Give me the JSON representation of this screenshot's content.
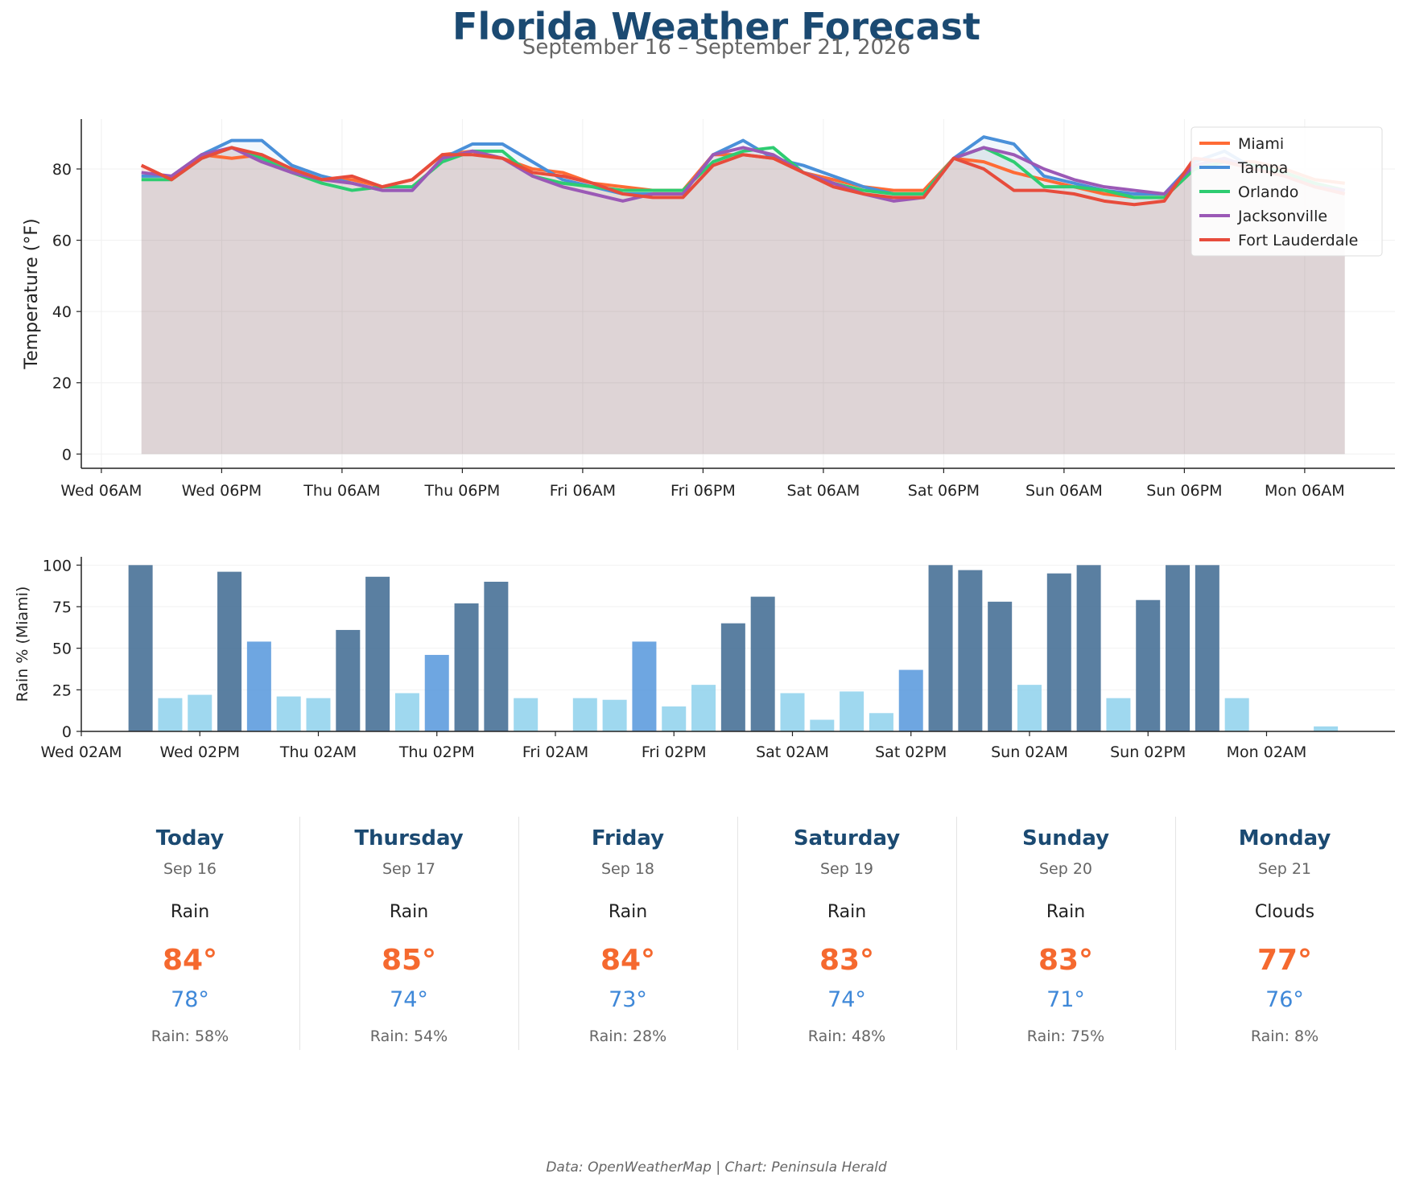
{
  "title": "Florida Weather Forecast",
  "subtitle": "September 16 – September 21, 2026",
  "credit": "Data: OpenWeatherMap | Chart: Peninsula Herald",
  "chart_data": [
    {
      "type": "line",
      "ylabel": "Temperature (°F)",
      "xlabel": "",
      "ylim": [
        -4,
        94
      ],
      "x_hours_range": [
        -2,
        129
      ],
      "grid": true,
      "legend": "top-right",
      "area_fill": true,
      "x_hours": [
        4,
        7,
        10,
        13,
        16,
        19,
        22,
        25,
        28,
        31,
        34,
        37,
        40,
        43,
        46,
        49,
        52,
        55,
        58,
        61,
        64,
        67,
        70,
        73,
        76,
        79,
        82,
        85,
        88,
        91,
        94,
        97,
        100,
        103,
        106,
        109,
        112,
        115,
        118,
        121,
        124
      ],
      "xticks": [
        "Wed 06AM",
        "Wed 06PM",
        "Thu 06AM",
        "Thu 06PM",
        "Fri 06AM",
        "Fri 06PM",
        "Sat 06AM",
        "Sat 06PM",
        "Sun 06AM",
        "Sun 06PM",
        "Mon 06AM"
      ],
      "xtick_hours": [
        0,
        12,
        24,
        36,
        48,
        60,
        72,
        84,
        96,
        108,
        120
      ],
      "yticks": [
        "0",
        "20",
        "40",
        "60",
        "80"
      ],
      "ytick_values": [
        0,
        20,
        40,
        60,
        80
      ],
      "series": [
        {
          "name": "Miami",
          "color": "#ff6b35",
          "values": [
            81,
            77,
            84,
            83,
            84,
            80,
            77,
            77,
            75,
            77,
            84,
            85,
            83,
            80,
            79,
            76,
            75,
            74,
            74,
            84,
            84,
            83,
            79,
            77,
            75,
            74,
            74,
            83,
            82,
            79,
            77,
            75,
            73,
            72,
            72,
            80,
            82,
            82,
            80,
            77,
            76
          ]
        },
        {
          "name": "Tampa",
          "color": "#4a90d9",
          "values": [
            78,
            78,
            84,
            88,
            88,
            81,
            78,
            76,
            74,
            74,
            83,
            87,
            87,
            82,
            77,
            75,
            73,
            73,
            73,
            84,
            88,
            83,
            81,
            78,
            75,
            73,
            73,
            83,
            89,
            87,
            78,
            76,
            74,
            73,
            73,
            82,
            85,
            80,
            78,
            76,
            74
          ]
        },
        {
          "name": "Orlando",
          "color": "#2ecc71",
          "values": [
            77,
            77,
            83,
            86,
            83,
            79,
            76,
            74,
            75,
            75,
            82,
            85,
            85,
            78,
            76,
            75,
            74,
            74,
            74,
            82,
            85,
            86,
            79,
            76,
            74,
            73,
            73,
            83,
            86,
            82,
            75,
            75,
            74,
            72,
            72,
            80,
            82,
            81,
            79,
            76,
            74
          ]
        },
        {
          "name": "Jacksonville",
          "color": "#9b59b6",
          "values": [
            79,
            78,
            84,
            86,
            82,
            79,
            77,
            76,
            74,
            74,
            83,
            85,
            83,
            78,
            75,
            73,
            71,
            73,
            73,
            84,
            86,
            84,
            79,
            76,
            73,
            71,
            72,
            83,
            86,
            84,
            80,
            77,
            75,
            74,
            73,
            81,
            83,
            80,
            78,
            75,
            74
          ]
        },
        {
          "name": "Fort Lauderdale",
          "color": "#e74c3c",
          "values": [
            81,
            77,
            83,
            86,
            84,
            80,
            77,
            78,
            75,
            77,
            84,
            84,
            83,
            79,
            78,
            76,
            73,
            72,
            72,
            81,
            84,
            83,
            79,
            75,
            73,
            72,
            72,
            83,
            80,
            74,
            74,
            73,
            71,
            70,
            71,
            83,
            82,
            80,
            78,
            75,
            73
          ]
        }
      ]
    },
    {
      "type": "bar",
      "ylabel": "Rain % (Miami)",
      "xlabel": "",
      "ylim": [
        0,
        105
      ],
      "x_hours_range": [
        2,
        135
      ],
      "grid": true,
      "x_hours": [
        8,
        11,
        14,
        17,
        20,
        23,
        26,
        29,
        32,
        35,
        38,
        41,
        44,
        47,
        50,
        53,
        56,
        59,
        62,
        65,
        68,
        71,
        74,
        77,
        80,
        83,
        86,
        89,
        92,
        95,
        98,
        101,
        104,
        107,
        110,
        113,
        116,
        119,
        122,
        125,
        128
      ],
      "values": [
        100,
        20,
        22,
        96,
        54,
        21,
        20,
        61,
        93,
        23,
        46,
        77,
        90,
        20,
        0,
        20,
        19,
        54,
        15,
        28,
        65,
        81,
        23,
        7,
        24,
        11,
        37,
        100,
        97,
        78,
        28,
        95,
        100,
        20,
        79,
        100,
        100,
        20,
        0,
        0,
        3
      ],
      "colors": {
        "high": "#3d6990",
        "medium": "#4a90d9",
        "low": "#87ceeb"
      },
      "xticks": [
        "Wed 02AM",
        "Wed 02PM",
        "Thu 02AM",
        "Thu 02PM",
        "Fri 02AM",
        "Fri 02PM",
        "Sat 02AM",
        "Sat 02PM",
        "Sun 02AM",
        "Sun 02PM",
        "Mon 02AM"
      ],
      "xtick_hours": [
        2,
        14,
        26,
        38,
        50,
        62,
        74,
        86,
        98,
        110,
        122
      ],
      "yticks": [
        "0",
        "25",
        "50",
        "75",
        "100"
      ],
      "ytick_values": [
        0,
        25,
        50,
        75,
        100
      ]
    }
  ],
  "days": [
    {
      "name": "Today",
      "date": "Sep 16",
      "condition": "Rain",
      "high": "84°",
      "low": "78°",
      "rain": "Rain: 58%"
    },
    {
      "name": "Thursday",
      "date": "Sep 17",
      "condition": "Rain",
      "high": "85°",
      "low": "74°",
      "rain": "Rain: 54%"
    },
    {
      "name": "Friday",
      "date": "Sep 18",
      "condition": "Rain",
      "high": "84°",
      "low": "73°",
      "rain": "Rain: 28%"
    },
    {
      "name": "Saturday",
      "date": "Sep 19",
      "condition": "Rain",
      "high": "83°",
      "low": "74°",
      "rain": "Rain: 48%"
    },
    {
      "name": "Sunday",
      "date": "Sep 20",
      "condition": "Rain",
      "high": "83°",
      "low": "71°",
      "rain": "Rain: 75%"
    },
    {
      "name": "Monday",
      "date": "Sep 21",
      "condition": "Clouds",
      "high": "77°",
      "low": "76°",
      "rain": "Rain: 8%"
    }
  ]
}
